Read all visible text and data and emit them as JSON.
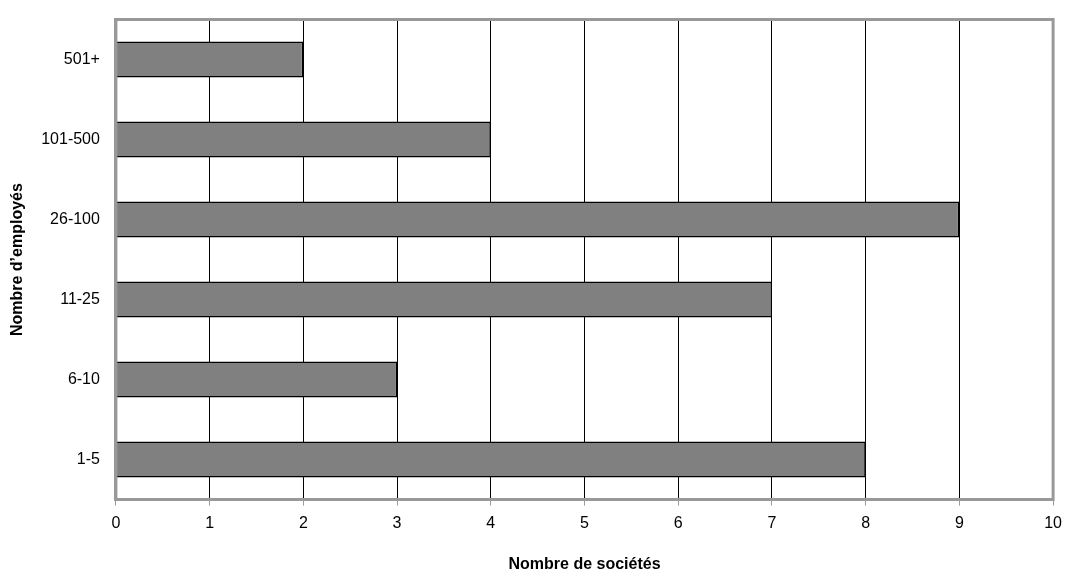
{
  "chart_data": {
    "type": "bar",
    "orientation": "horizontal",
    "categories": [
      "501+",
      "101-500",
      "26-100",
      "11-25",
      "6-10",
      "1-5"
    ],
    "values": [
      2,
      4,
      9,
      7,
      3,
      8
    ],
    "color": "#808080",
    "xlim": [
      0,
      10
    ],
    "xticks": [
      0,
      1,
      2,
      3,
      4,
      5,
      6,
      7,
      8,
      9,
      10
    ],
    "xlabel": "Nombre de sociétés",
    "ylabel": "Nombre d’employés",
    "grid": "x"
  }
}
